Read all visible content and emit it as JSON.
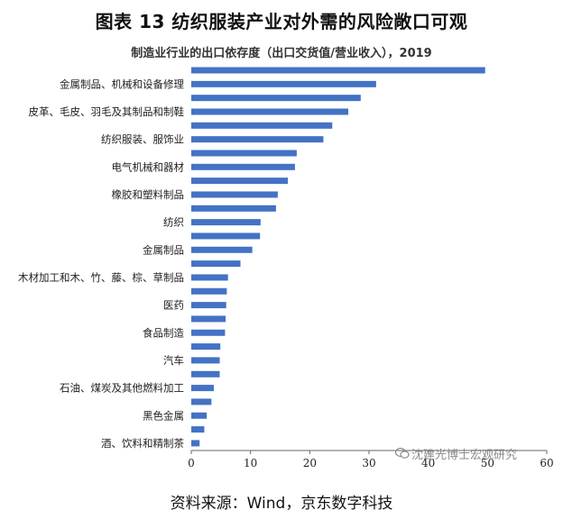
{
  "figure_title": "图表 13  纺织服装产业对外需的风险敞口可观",
  "source": "资料来源：Wind，京东数字科技",
  "watermark": "沈建光博士宏观研究",
  "colors": {
    "bar": "#4472C4",
    "axis": "#666666",
    "text": "#222222"
  },
  "chart_data": {
    "type": "bar",
    "orientation": "horizontal",
    "title": "制造业行业的出口依存度（出口交货值/营业收入），2019",
    "xlabel": "",
    "ylabel": "",
    "xlim": [
      0,
      60
    ],
    "x_ticks": [
      0,
      10,
      20,
      30,
      40,
      50,
      60
    ],
    "grid": false,
    "legend": "none",
    "categories": [
      "",
      "金属制品、机械和设备修理",
      "",
      "皮革、毛皮、羽毛及其制品和制鞋",
      "",
      "纺织服装、服饰业",
      "",
      "电气机械和器材",
      "",
      "橡胶和塑料制品",
      "",
      "纺织",
      "",
      "金属制品",
      "",
      "木材加工和木、竹、藤、棕、草制品",
      "",
      "医药",
      "",
      "食品制造",
      "",
      "汽车",
      "",
      "石油、煤炭及其他燃料加工",
      "",
      "黑色金属",
      "",
      "酒、饮料和精制茶"
    ],
    "values": [
      49.6,
      31.2,
      28.6,
      26.5,
      23.8,
      22.3,
      17.8,
      17.5,
      16.3,
      14.6,
      14.3,
      11.7,
      11.6,
      10.3,
      8.3,
      6.2,
      6.0,
      5.9,
      5.8,
      5.7,
      4.9,
      4.8,
      4.8,
      3.8,
      3.4,
      2.6,
      2.2,
      1.4
    ]
  }
}
